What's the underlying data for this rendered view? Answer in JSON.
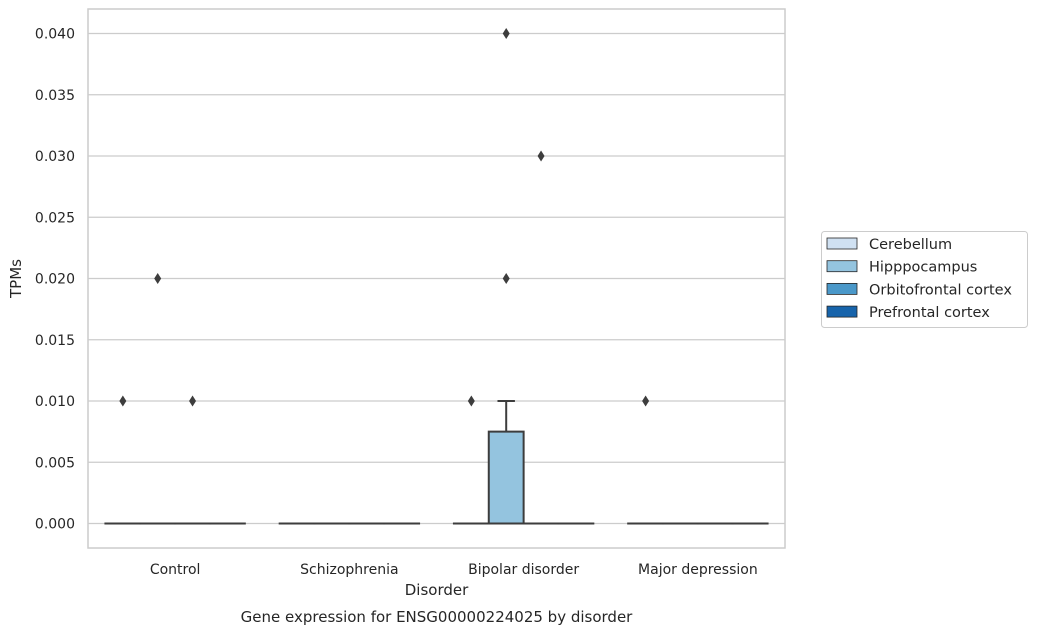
{
  "chart_data": {
    "type": "box",
    "title": "",
    "caption": "Gene expression for ENSG00000224025 by disorder",
    "xlabel": "Disorder",
    "ylabel": "TPMs",
    "ylim": [
      -0.002,
      0.042
    ],
    "yticks": [
      "0.000",
      "0.005",
      "0.010",
      "0.015",
      "0.020",
      "0.025",
      "0.030",
      "0.035",
      "0.040"
    ],
    "categories": [
      "Control",
      "Schizophrenia",
      "Bipolar disorder",
      "Major depression"
    ],
    "grid": "horizontal",
    "legend_position": "right",
    "series": [
      {
        "name": "Cerebellum",
        "color": "#d0e1f2",
        "boxes": [
          {
            "q1": 0,
            "median": 0,
            "q3": 0,
            "whisker_low": 0,
            "whisker_high": 0,
            "outliers": [
              0.01
            ]
          },
          {
            "q1": 0,
            "median": 0,
            "q3": 0,
            "whisker_low": 0,
            "whisker_high": 0,
            "outliers": []
          },
          {
            "q1": 0,
            "median": 0,
            "q3": 0,
            "whisker_low": 0,
            "whisker_high": 0,
            "outliers": [
              0.01
            ]
          },
          {
            "q1": 0,
            "median": 0,
            "q3": 0,
            "whisker_low": 0,
            "whisker_high": 0,
            "outliers": [
              0.01
            ]
          }
        ]
      },
      {
        "name": "Hipppocampus",
        "color": "#94c4df",
        "boxes": [
          {
            "q1": 0,
            "median": 0,
            "q3": 0,
            "whisker_low": 0,
            "whisker_high": 0,
            "outliers": [
              0.02
            ]
          },
          {
            "q1": 0,
            "median": 0,
            "q3": 0,
            "whisker_low": 0,
            "whisker_high": 0,
            "outliers": []
          },
          {
            "q1": 0,
            "median": 0,
            "q3": 0.0075,
            "whisker_low": 0,
            "whisker_high": 0.01,
            "outliers": [
              0.02,
              0.04
            ]
          },
          {
            "q1": 0,
            "median": 0,
            "q3": 0,
            "whisker_low": 0,
            "whisker_high": 0,
            "outliers": []
          }
        ]
      },
      {
        "name": "Orbitofrontal cortex",
        "color": "#4a98c9",
        "boxes": [
          {
            "q1": 0,
            "median": 0,
            "q3": 0,
            "whisker_low": 0,
            "whisker_high": 0,
            "outliers": [
              0.01
            ]
          },
          {
            "q1": 0,
            "median": 0,
            "q3": 0,
            "whisker_low": 0,
            "whisker_high": 0,
            "outliers": []
          },
          {
            "q1": 0,
            "median": 0,
            "q3": 0,
            "whisker_low": 0,
            "whisker_high": 0,
            "outliers": [
              0.03
            ]
          },
          {
            "q1": 0,
            "median": 0,
            "q3": 0,
            "whisker_low": 0,
            "whisker_high": 0,
            "outliers": []
          }
        ]
      },
      {
        "name": "Prefrontal cortex",
        "color": "#1764ab",
        "boxes": [
          {
            "q1": 0,
            "median": 0,
            "q3": 0,
            "whisker_low": 0,
            "whisker_high": 0,
            "outliers": []
          },
          {
            "q1": 0,
            "median": 0,
            "q3": 0,
            "whisker_low": 0,
            "whisker_high": 0,
            "outliers": []
          },
          {
            "q1": 0,
            "median": 0,
            "q3": 0,
            "whisker_low": 0,
            "whisker_high": 0,
            "outliers": []
          },
          {
            "q1": 0,
            "median": 0,
            "q3": 0,
            "whisker_low": 0,
            "whisker_high": 0,
            "outliers": []
          }
        ]
      }
    ]
  }
}
